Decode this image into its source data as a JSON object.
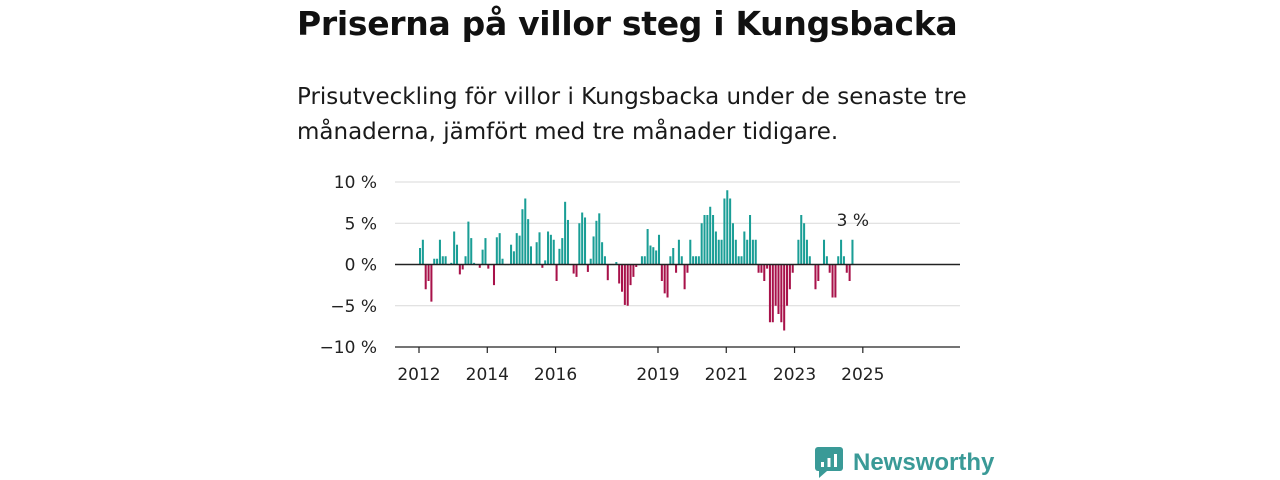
{
  "header": {
    "title": "Priserna på villor steg i Kungsbacka",
    "subtitle": "Prisutveckling för villor i Kungsbacka under de senaste tre månaderna, jämfört med tre månader tidigare."
  },
  "brand": {
    "name": "Newsworthy",
    "color": "#3a9a97"
  },
  "chart_data": {
    "type": "bar",
    "x_start": "2012-01",
    "x_end": "2025-06",
    "x_ticks": [
      "2012",
      "2014",
      "2016",
      "2019",
      "2021",
      "2023",
      "2025"
    ],
    "x_tick_positions": [
      2012,
      2014,
      2016,
      2019,
      2021,
      2023,
      2025
    ],
    "y_ticks": [
      10,
      5,
      0,
      -5,
      -10
    ],
    "y_tick_labels": [
      "10 %",
      "5 %",
      "0 %",
      "−5 %",
      "−10 %"
    ],
    "ylim": [
      -10,
      10
    ],
    "grid": true,
    "positive_color": "#1a9e96",
    "negative_color": "#a8124a",
    "last_value_label": "3 %",
    "values": [
      2,
      3,
      -3,
      -2,
      -4.5,
      0.7,
      0.7,
      3,
      1,
      1,
      0,
      0.2,
      4,
      2.4,
      -1.2,
      -0.6,
      1,
      5.2,
      3.2,
      0.2,
      0,
      -0.4,
      1.8,
      3.2,
      -0.5,
      0,
      -2.5,
      3.3,
      3.8,
      0.7,
      0,
      0,
      2.4,
      1.6,
      3.8,
      3.5,
      6.7,
      8,
      5.5,
      2.2,
      0,
      2.7,
      3.9,
      -0.4,
      0.5,
      4,
      3.6,
      3,
      -2,
      1.9,
      3.2,
      7.6,
      5.4,
      0,
      -1.1,
      -1.5,
      5,
      6.3,
      5.7,
      -0.9,
      0.7,
      3.4,
      5.3,
      6.2,
      2.7,
      1,
      -1.9,
      0,
      0,
      0.3,
      -2.3,
      -3.3,
      -4.9,
      -5,
      -2.5,
      -1.5,
      -0.3,
      0,
      1,
      1,
      4.3,
      2.3,
      2.1,
      1.7,
      3.6,
      -2,
      -3.5,
      -4,
      1,
      2,
      -1,
      3,
      1,
      -3,
      -1,
      3,
      1,
      1,
      1,
      5,
      6,
      6,
      7,
      6,
      4,
      3,
      3,
      8,
      9,
      8,
      5,
      3,
      1,
      1,
      4,
      3,
      6,
      3,
      3,
      -1,
      -1,
      -2,
      -0.5,
      -7,
      -7,
      -5,
      -6,
      -7,
      -8,
      -5,
      -3,
      -1,
      0,
      3,
      6,
      5,
      3,
      1,
      0,
      -3,
      -2,
      0,
      3,
      1,
      -1,
      -4,
      -4,
      1,
      3,
      1,
      -1,
      -2,
      3
    ]
  }
}
